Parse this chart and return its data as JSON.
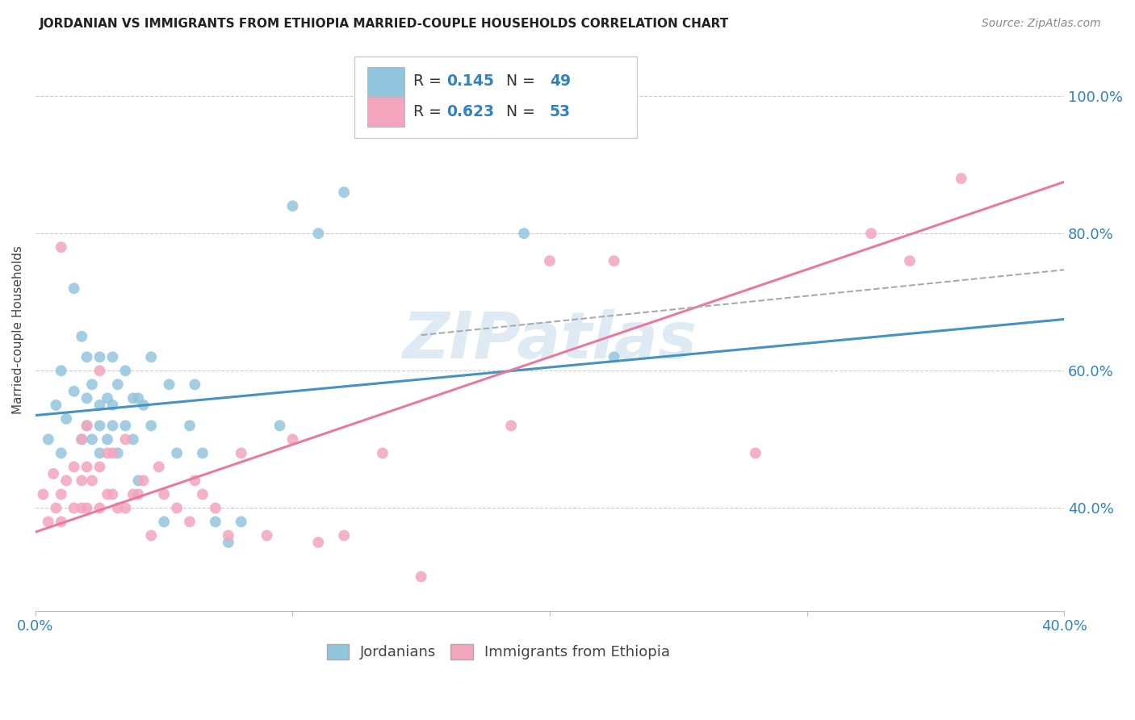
{
  "title": "JORDANIAN VS IMMIGRANTS FROM ETHIOPIA MARRIED-COUPLE HOUSEHOLDS CORRELATION CHART",
  "source": "Source: ZipAtlas.com",
  "ylabel": "Married-couple Households",
  "ytick_vals": [
    0.4,
    0.6,
    0.8,
    1.0
  ],
  "ytick_labels": [
    "40.0%",
    "60.0%",
    "80.0%",
    "100.0%"
  ],
  "xlim": [
    0.0,
    0.4
  ],
  "ylim": [
    0.25,
    1.07
  ],
  "legend_label1": "Jordanians",
  "legend_label2": "Immigrants from Ethiopia",
  "R1": "0.145",
  "N1": "49",
  "R2": "0.623",
  "N2": "53",
  "color_blue": "#92c5de",
  "color_pink": "#f4a5be",
  "color_line_blue": "#4393c3",
  "color_line_pink": "#e87aa0",
  "color_text_blue": "#3182bd",
  "watermark": "ZIPatlas",
  "background_color": "#ffffff",
  "grid_color": "#cccccc",
  "blue_x": [
    0.005,
    0.008,
    0.01,
    0.01,
    0.012,
    0.015,
    0.015,
    0.018,
    0.018,
    0.02,
    0.02,
    0.02,
    0.022,
    0.022,
    0.025,
    0.025,
    0.025,
    0.025,
    0.028,
    0.028,
    0.03,
    0.03,
    0.03,
    0.032,
    0.032,
    0.035,
    0.035,
    0.038,
    0.038,
    0.04,
    0.04,
    0.042,
    0.045,
    0.045,
    0.05,
    0.052,
    0.055,
    0.06,
    0.062,
    0.065,
    0.07,
    0.075,
    0.08,
    0.095,
    0.1,
    0.11,
    0.12,
    0.19,
    0.225
  ],
  "blue_y": [
    0.5,
    0.55,
    0.48,
    0.6,
    0.53,
    0.57,
    0.72,
    0.5,
    0.65,
    0.52,
    0.56,
    0.62,
    0.5,
    0.58,
    0.48,
    0.52,
    0.55,
    0.62,
    0.5,
    0.56,
    0.52,
    0.55,
    0.62,
    0.48,
    0.58,
    0.52,
    0.6,
    0.5,
    0.56,
    0.44,
    0.56,
    0.55,
    0.52,
    0.62,
    0.38,
    0.58,
    0.48,
    0.52,
    0.58,
    0.48,
    0.38,
    0.35,
    0.38,
    0.52,
    0.84,
    0.8,
    0.86,
    0.8,
    0.62
  ],
  "pink_x": [
    0.003,
    0.005,
    0.007,
    0.008,
    0.01,
    0.01,
    0.01,
    0.012,
    0.015,
    0.015,
    0.018,
    0.018,
    0.018,
    0.02,
    0.02,
    0.02,
    0.022,
    0.025,
    0.025,
    0.025,
    0.028,
    0.028,
    0.03,
    0.03,
    0.032,
    0.035,
    0.035,
    0.038,
    0.04,
    0.042,
    0.045,
    0.048,
    0.05,
    0.055,
    0.06,
    0.062,
    0.065,
    0.07,
    0.075,
    0.08,
    0.09,
    0.1,
    0.11,
    0.12,
    0.135,
    0.15,
    0.185,
    0.2,
    0.225,
    0.28,
    0.325,
    0.34,
    0.36
  ],
  "pink_y": [
    0.42,
    0.38,
    0.45,
    0.4,
    0.38,
    0.42,
    0.78,
    0.44,
    0.4,
    0.46,
    0.4,
    0.44,
    0.5,
    0.4,
    0.46,
    0.52,
    0.44,
    0.4,
    0.46,
    0.6,
    0.42,
    0.48,
    0.42,
    0.48,
    0.4,
    0.4,
    0.5,
    0.42,
    0.42,
    0.44,
    0.36,
    0.46,
    0.42,
    0.4,
    0.38,
    0.44,
    0.42,
    0.4,
    0.36,
    0.48,
    0.36,
    0.5,
    0.35,
    0.36,
    0.48,
    0.3,
    0.52,
    0.76,
    0.76,
    0.48,
    0.8,
    0.76,
    0.88
  ]
}
